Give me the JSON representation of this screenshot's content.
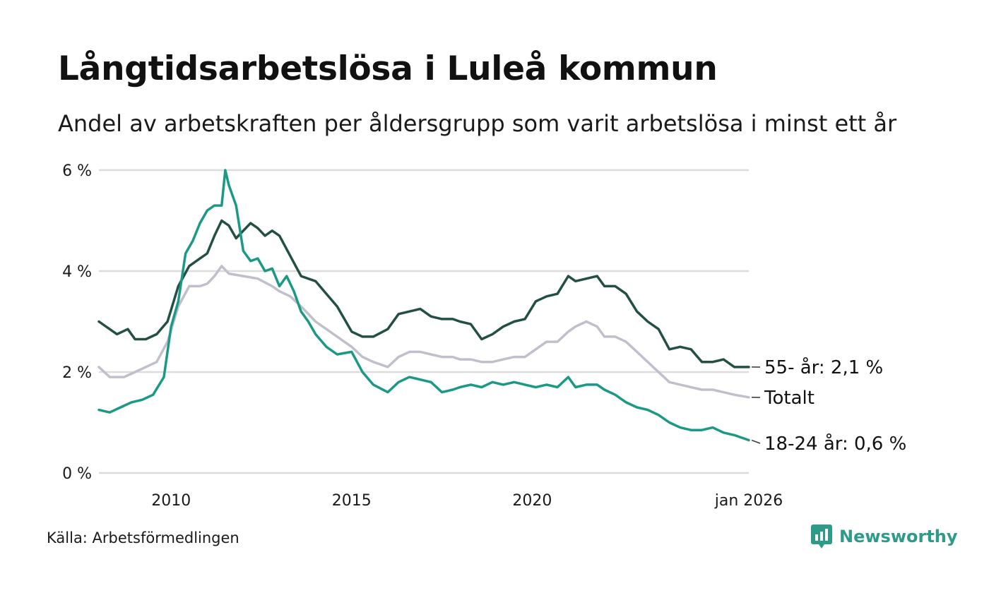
{
  "title": "Långtidsarbetslösa i Luleå kommun",
  "subtitle": "Andel av arbetskraften per åldersgrupp som varit arbetslösa i minst ett år",
  "source": "Källa: Arbetsförmedlingen",
  "brand": {
    "name": "Newsworthy",
    "icon": "newsworthy-logo-icon",
    "color": "#2e9a8a"
  },
  "chart_data": {
    "type": "line",
    "title": "Långtidsarbetslösa i Luleå kommun",
    "xlabel": "",
    "ylabel": "",
    "xlim": [
      2008.0,
      2026.0
    ],
    "ylim": [
      0,
      6
    ],
    "yticks": [
      {
        "value": 0,
        "label": "0 %"
      },
      {
        "value": 2,
        "label": "2 %"
      },
      {
        "value": 4,
        "label": "4 %"
      },
      {
        "value": 6,
        "label": "6 %"
      }
    ],
    "xticks": [
      {
        "value": 2010,
        "label": "2010"
      },
      {
        "value": 2015,
        "label": "2015"
      },
      {
        "value": 2020,
        "label": "2020"
      },
      {
        "value": 2026.0,
        "label": "jan 2026"
      }
    ],
    "grid": true,
    "series": [
      {
        "name": "55- år",
        "end_label": "55- år: 2,1 %",
        "color": "#234f45",
        "x": [
          2008.0,
          2008.5,
          2008.8,
          2009.0,
          2009.3,
          2009.6,
          2009.9,
          2010.2,
          2010.5,
          2010.8,
          2011.0,
          2011.2,
          2011.4,
          2011.6,
          2011.8,
          2012.0,
          2012.2,
          2012.4,
          2012.6,
          2012.8,
          2013.0,
          2013.3,
          2013.6,
          2014.0,
          2014.3,
          2014.6,
          2015.0,
          2015.3,
          2015.6,
          2016.0,
          2016.3,
          2016.6,
          2016.9,
          2017.2,
          2017.5,
          2017.8,
          2018.0,
          2018.3,
          2018.6,
          2018.9,
          2019.2,
          2019.5,
          2019.8,
          2020.1,
          2020.4,
          2020.7,
          2021.0,
          2021.2,
          2021.5,
          2021.8,
          2022.0,
          2022.3,
          2022.6,
          2022.9,
          2023.2,
          2023.5,
          2023.8,
          2024.1,
          2024.4,
          2024.7,
          2025.0,
          2025.3,
          2025.6,
          2026.0
        ],
        "y": [
          3.0,
          2.75,
          2.85,
          2.65,
          2.65,
          2.75,
          3.0,
          3.7,
          4.1,
          4.25,
          4.35,
          4.7,
          5.0,
          4.9,
          4.65,
          4.8,
          4.95,
          4.85,
          4.7,
          4.8,
          4.7,
          4.3,
          3.9,
          3.8,
          3.55,
          3.3,
          2.8,
          2.7,
          2.7,
          2.85,
          3.15,
          3.2,
          3.25,
          3.1,
          3.05,
          3.05,
          3.0,
          2.95,
          2.65,
          2.75,
          2.9,
          3.0,
          3.05,
          3.4,
          3.5,
          3.55,
          3.9,
          3.8,
          3.85,
          3.9,
          3.7,
          3.7,
          3.55,
          3.2,
          3.0,
          2.85,
          2.45,
          2.5,
          2.45,
          2.2,
          2.2,
          2.25,
          2.1,
          2.1
        ]
      },
      {
        "name": "Totalt",
        "end_label": "Totalt",
        "color": "#c2bfcc",
        "x": [
          2008.0,
          2008.3,
          2008.7,
          2009.0,
          2009.3,
          2009.6,
          2009.9,
          2010.2,
          2010.5,
          2010.8,
          2011.0,
          2011.2,
          2011.4,
          2011.6,
          2012.0,
          2012.4,
          2012.8,
          2013.0,
          2013.3,
          2013.6,
          2014.0,
          2014.3,
          2014.6,
          2015.0,
          2015.3,
          2015.6,
          2016.0,
          2016.3,
          2016.6,
          2016.9,
          2017.2,
          2017.5,
          2017.8,
          2018.0,
          2018.3,
          2018.6,
          2018.9,
          2019.2,
          2019.5,
          2019.8,
          2020.1,
          2020.4,
          2020.7,
          2021.0,
          2021.2,
          2021.5,
          2021.8,
          2022.0,
          2022.3,
          2022.6,
          2022.9,
          2023.2,
          2023.5,
          2023.8,
          2024.1,
          2024.4,
          2024.7,
          2025.0,
          2025.3,
          2025.6,
          2026.0
        ],
        "y": [
          2.1,
          1.9,
          1.9,
          2.0,
          2.1,
          2.2,
          2.6,
          3.3,
          3.7,
          3.7,
          3.75,
          3.9,
          4.1,
          3.95,
          3.9,
          3.85,
          3.7,
          3.6,
          3.5,
          3.3,
          3.0,
          2.85,
          2.7,
          2.5,
          2.3,
          2.2,
          2.1,
          2.3,
          2.4,
          2.4,
          2.35,
          2.3,
          2.3,
          2.25,
          2.25,
          2.2,
          2.2,
          2.25,
          2.3,
          2.3,
          2.45,
          2.6,
          2.6,
          2.8,
          2.9,
          3.0,
          2.9,
          2.7,
          2.7,
          2.6,
          2.4,
          2.2,
          2.0,
          1.8,
          1.75,
          1.7,
          1.65,
          1.65,
          1.6,
          1.55,
          1.5
        ]
      },
      {
        "name": "18-24 år",
        "end_label": "18-24 år: 0,6 %",
        "color": "#1a9985",
        "x": [
          2008.0,
          2008.3,
          2008.6,
          2008.9,
          2009.2,
          2009.5,
          2009.8,
          2010.0,
          2010.2,
          2010.4,
          2010.6,
          2010.8,
          2011.0,
          2011.2,
          2011.4,
          2011.5,
          2011.6,
          2011.8,
          2012.0,
          2012.2,
          2012.4,
          2012.6,
          2012.8,
          2013.0,
          2013.2,
          2013.4,
          2013.6,
          2013.8,
          2014.0,
          2014.3,
          2014.6,
          2015.0,
          2015.3,
          2015.6,
          2016.0,
          2016.3,
          2016.6,
          2016.9,
          2017.2,
          2017.5,
          2017.8,
          2018.0,
          2018.3,
          2018.6,
          2018.9,
          2019.2,
          2019.5,
          2019.8,
          2020.1,
          2020.4,
          2020.7,
          2021.0,
          2021.2,
          2021.5,
          2021.8,
          2022.0,
          2022.3,
          2022.6,
          2022.9,
          2023.2,
          2023.5,
          2023.8,
          2024.1,
          2024.4,
          2024.7,
          2025.0,
          2025.3,
          2025.6,
          2026.0
        ],
        "y": [
          1.25,
          1.2,
          1.3,
          1.4,
          1.45,
          1.55,
          1.9,
          2.9,
          3.4,
          4.35,
          4.6,
          4.95,
          5.2,
          5.3,
          5.3,
          6.0,
          5.7,
          5.3,
          4.4,
          4.2,
          4.25,
          4.0,
          4.05,
          3.7,
          3.9,
          3.6,
          3.2,
          3.0,
          2.75,
          2.5,
          2.35,
          2.4,
          2.0,
          1.75,
          1.6,
          1.8,
          1.9,
          1.85,
          1.8,
          1.6,
          1.65,
          1.7,
          1.75,
          1.7,
          1.8,
          1.75,
          1.8,
          1.75,
          1.7,
          1.75,
          1.7,
          1.9,
          1.7,
          1.75,
          1.75,
          1.65,
          1.55,
          1.4,
          1.3,
          1.25,
          1.15,
          1.0,
          0.9,
          0.85,
          0.85,
          0.9,
          0.8,
          0.75,
          0.65
        ]
      }
    ]
  }
}
